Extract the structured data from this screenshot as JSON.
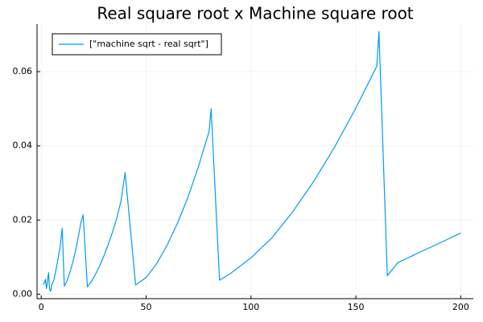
{
  "chart_data": {
    "type": "line",
    "title": "Real square root x Machine square root",
    "xlabel": "",
    "ylabel": "",
    "xlim": [
      -2,
      206
    ],
    "ylim": [
      -0.0012,
      0.0728
    ],
    "xticks": [
      0,
      50,
      100,
      150,
      200
    ],
    "xtick_labels": [
      "0",
      "50",
      "100",
      "150",
      "200"
    ],
    "yticks": [
      0.0,
      0.02,
      0.04,
      0.06
    ],
    "ytick_labels": [
      "0.00",
      "0.02",
      "0.04",
      "0.06"
    ],
    "grid": true,
    "legend_position": "top-left",
    "colors": {
      "series": "#009af9"
    },
    "series": [
      {
        "name": "[\"machine sqrt - real sqrt\"]",
        "description": "sawtooth curve: difference rises smoothly and drops sharply at approx x = 2.5, 5, 10, 20, 40, 80, 160",
        "x": [
          1,
          2,
          2.5,
          3,
          3.5,
          4,
          4.5,
          5,
          6,
          7,
          8,
          9,
          10,
          11,
          12,
          13,
          14,
          15,
          16,
          17,
          18,
          19,
          20,
          22,
          24,
          26,
          28,
          30,
          32,
          34,
          36,
          38,
          40,
          45,
          50,
          55,
          60,
          65,
          70,
          75,
          80,
          81,
          85,
          90,
          100,
          110,
          120,
          130,
          140,
          150,
          160,
          161,
          165,
          170,
          180,
          190,
          200
        ],
        "y": [
          0.0025,
          0.004,
          0.0015,
          0.0035,
          0.0058,
          0.0012,
          0.0008,
          0.0025,
          0.0038,
          0.0065,
          0.0095,
          0.0128,
          0.0178,
          0.0022,
          0.0032,
          0.0048,
          0.0065,
          0.0085,
          0.0108,
          0.0135,
          0.0165,
          0.0195,
          0.0214,
          0.002,
          0.0035,
          0.0055,
          0.0078,
          0.0105,
          0.0135,
          0.0168,
          0.0205,
          0.025,
          0.0328,
          0.0025,
          0.0045,
          0.0082,
          0.0132,
          0.0192,
          0.0262,
          0.0345,
          0.0438,
          0.05,
          0.0038,
          0.0055,
          0.0098,
          0.0152,
          0.0223,
          0.0305,
          0.0398,
          0.0502,
          0.0615,
          0.0708,
          0.005,
          0.0085,
          0.0112,
          0.0138,
          0.0165
        ]
      }
    ]
  }
}
